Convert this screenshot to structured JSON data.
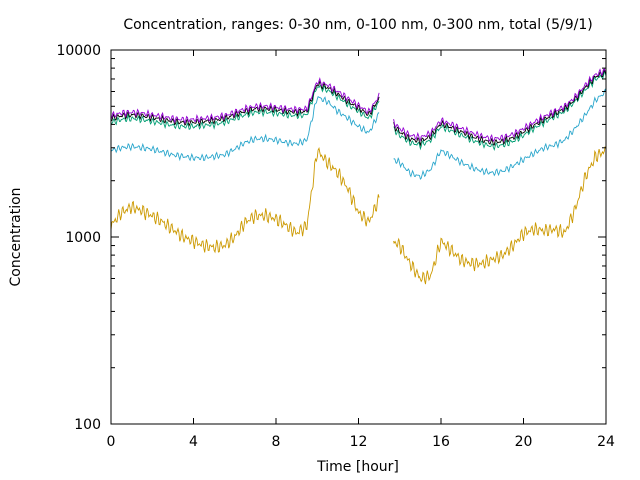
{
  "chart_data": {
    "type": "line",
    "title": "Concentration, ranges: 0-30 nm, 0-100 nm, 0-300 nm, total (5/9/1)",
    "xlabel": "Time [hour]",
    "ylabel": "Concentration",
    "xlim": [
      0,
      24
    ],
    "ylim": [
      100,
      10000
    ],
    "yscale": "log",
    "grid": false,
    "legend": "none",
    "x_ticks": [
      0,
      4,
      8,
      12,
      16,
      20,
      24
    ],
    "x_tick_labels": [
      "0",
      "4",
      "8",
      "12",
      "16",
      "20",
      "24"
    ],
    "y_ticks": [
      100,
      1000,
      10000
    ],
    "y_tick_labels": [
      "100",
      "1000",
      "10000"
    ],
    "series": [
      {
        "color": "#cc9900",
        "x": [
          0,
          0.5,
          1,
          1.5,
          2,
          2.5,
          3,
          3.5,
          4,
          4.5,
          5,
          5.5,
          6,
          6.5,
          7,
          7.5,
          8,
          8.5,
          9,
          9.5,
          10,
          10.5,
          11,
          11.5,
          12,
          12.5,
          13,
          null,
          13.7,
          14,
          14.5,
          15,
          15.5,
          16,
          16.5,
          17,
          17.5,
          18,
          18.5,
          19,
          19.5,
          20,
          20.5,
          21,
          21.5,
          22,
          22.5,
          23,
          23.5,
          24
        ],
        "y": [
          1150,
          1350,
          1450,
          1380,
          1300,
          1200,
          1100,
          1000,
          950,
          900,
          880,
          900,
          1000,
          1200,
          1300,
          1300,
          1250,
          1150,
          1050,
          1150,
          2900,
          2500,
          2200,
          1800,
          1350,
          1200,
          1600,
          null,
          950,
          900,
          720,
          600,
          620,
          950,
          850,
          750,
          720,
          720,
          760,
          800,
          900,
          1050,
          1100,
          1080,
          1100,
          1050,
          1400,
          2100,
          2700,
          2900
        ]
      },
      {
        "color": "#2aa6cc",
        "x": [
          0,
          0.5,
          1,
          1.5,
          2,
          2.5,
          3,
          3.5,
          4,
          4.5,
          5,
          5.5,
          6,
          6.5,
          7,
          7.5,
          8,
          8.5,
          9,
          9.5,
          10,
          10.5,
          11,
          11.5,
          12,
          12.5,
          13,
          null,
          13.7,
          14,
          14.5,
          15,
          15.5,
          16,
          16.5,
          17,
          17.5,
          18,
          18.5,
          19,
          19.5,
          20,
          20.5,
          21,
          21.5,
          22,
          22.5,
          23,
          23.5,
          24
        ],
        "y": [
          2900,
          3000,
          3050,
          3000,
          2950,
          2850,
          2750,
          2700,
          2650,
          2650,
          2700,
          2750,
          2950,
          3200,
          3350,
          3350,
          3300,
          3200,
          3150,
          3300,
          5600,
          5300,
          4700,
          4300,
          3900,
          3600,
          4600,
          null,
          2600,
          2500,
          2200,
          2100,
          2300,
          2900,
          2700,
          2500,
          2350,
          2250,
          2200,
          2250,
          2400,
          2600,
          2800,
          3000,
          3100,
          3300,
          3800,
          4500,
          5400,
          6000
        ]
      },
      {
        "color": "#009e73",
        "x": [
          0,
          0.5,
          1,
          1.5,
          2,
          2.5,
          3,
          3.5,
          4,
          4.5,
          5,
          5.5,
          6,
          6.5,
          7,
          7.5,
          8,
          8.5,
          9,
          9.5,
          10,
          10.5,
          11,
          11.5,
          12,
          12.5,
          13,
          null,
          13.7,
          14,
          14.5,
          15,
          15.5,
          16,
          16.5,
          17,
          17.5,
          18,
          18.5,
          19,
          19.5,
          20,
          20.5,
          21,
          21.5,
          22,
          22.5,
          23,
          23.5,
          24
        ],
        "y": [
          4100,
          4250,
          4300,
          4250,
          4150,
          4050,
          3950,
          3900,
          3900,
          3950,
          4000,
          4100,
          4300,
          4500,
          4650,
          4650,
          4600,
          4500,
          4450,
          4500,
          6400,
          6100,
          5600,
          5100,
          4700,
          4300,
          5300,
          null,
          3800,
          3500,
          3200,
          3100,
          3300,
          3900,
          3700,
          3500,
          3300,
          3150,
          3050,
          3100,
          3250,
          3500,
          3800,
          4100,
          4400,
          4700,
          5300,
          6100,
          7000,
          7400
        ]
      },
      {
        "color": "#000000",
        "x": [
          0,
          0.5,
          1,
          1.5,
          2,
          2.5,
          3,
          3.5,
          4,
          4.5,
          5,
          5.5,
          6,
          6.5,
          7,
          7.5,
          8,
          8.5,
          9,
          9.5,
          10,
          10.5,
          11,
          11.5,
          12,
          12.5,
          13,
          null,
          13.7,
          14,
          14.5,
          15,
          15.5,
          16,
          16.5,
          17,
          17.5,
          18,
          18.5,
          19,
          19.5,
          20,
          20.5,
          21,
          21.5,
          22,
          22.5,
          23,
          23.5,
          24
        ],
        "y": [
          4300,
          4450,
          4500,
          4450,
          4350,
          4250,
          4150,
          4100,
          4100,
          4150,
          4200,
          4300,
          4500,
          4700,
          4850,
          4850,
          4800,
          4700,
          4650,
          4700,
          6600,
          6300,
          5800,
          5300,
          4900,
          4500,
          5500,
          null,
          3950,
          3650,
          3350,
          3250,
          3450,
          4050,
          3850,
          3650,
          3450,
          3300,
          3200,
          3250,
          3400,
          3650,
          3950,
          4250,
          4550,
          4850,
          5450,
          6300,
          7200,
          7600
        ]
      },
      {
        "color": "#9400d3",
        "x": [
          0,
          0.5,
          1,
          1.5,
          2,
          2.5,
          3,
          3.5,
          4,
          4.5,
          5,
          5.5,
          6,
          6.5,
          7,
          7.5,
          8,
          8.5,
          9,
          9.5,
          10,
          10.5,
          11,
          11.5,
          12,
          12.5,
          13,
          null,
          13.7,
          14,
          14.5,
          15,
          15.5,
          16,
          16.5,
          17,
          17.5,
          18,
          18.5,
          19,
          19.5,
          20,
          20.5,
          21,
          21.5,
          22,
          22.5,
          23,
          23.5,
          24
        ],
        "y": [
          4450,
          4600,
          4650,
          4600,
          4500,
          4400,
          4300,
          4250,
          4250,
          4300,
          4350,
          4450,
          4650,
          4850,
          5000,
          5000,
          4950,
          4850,
          4800,
          4850,
          6800,
          6500,
          6000,
          5500,
          5050,
          4650,
          5700,
          null,
          4100,
          3800,
          3500,
          3400,
          3600,
          4200,
          4000,
          3800,
          3600,
          3450,
          3350,
          3400,
          3550,
          3800,
          4100,
          4400,
          4700,
          5000,
          5600,
          6500,
          7400,
          7800
        ]
      }
    ]
  }
}
